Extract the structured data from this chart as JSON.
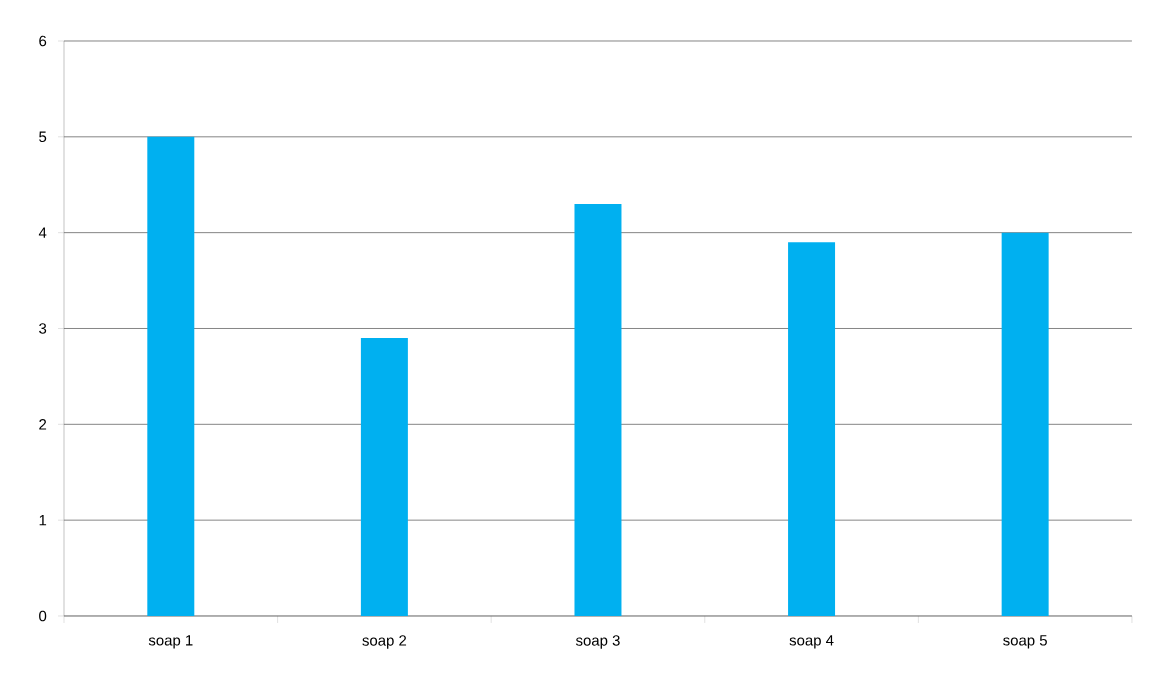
{
  "chart_data": {
    "type": "bar",
    "categories": [
      "soap 1",
      "soap 2",
      "soap 3",
      "soap 4",
      "soap 5"
    ],
    "values": [
      5,
      2.9,
      4.3,
      3.9,
      4.0
    ],
    "color": "#00b0f0",
    "ylim": [
      0,
      6
    ],
    "yticks": [
      0,
      1,
      2,
      3,
      4,
      5,
      6
    ],
    "grid": "y"
  }
}
